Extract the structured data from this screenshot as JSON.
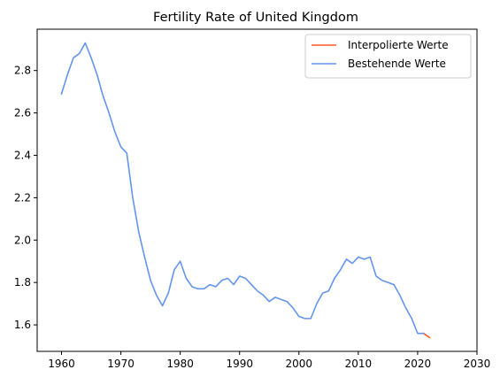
{
  "chart_data": {
    "type": "line",
    "title": "Fertility Rate of United Kingdom",
    "xlabel": "",
    "ylabel": "",
    "xlim": [
      1955.9,
      2030
    ],
    "ylim": [
      1.475,
      2.995
    ],
    "xticks": [
      1960,
      1970,
      1980,
      1990,
      2000,
      2010,
      2020,
      2030
    ],
    "yticks": [
      1.6,
      1.8,
      2.0,
      2.2,
      2.4,
      2.6,
      2.8
    ],
    "ytick_labels": [
      "1.6",
      "1.8",
      "2.0",
      "2.2",
      "2.4",
      "2.6",
      "2.8"
    ],
    "grid": false,
    "legend_position": "top-right",
    "series": [
      {
        "name": "Interpolierte Werte",
        "color": "#ff5722",
        "x": [
          2021,
          2022
        ],
        "y": [
          1.56,
          1.54
        ]
      },
      {
        "name": "Bestehende Werte",
        "color": "#6495ed",
        "x": [
          1960,
          1961,
          1962,
          1963,
          1964,
          1965,
          1966,
          1967,
          1968,
          1969,
          1970,
          1971,
          1972,
          1973,
          1974,
          1975,
          1976,
          1977,
          1978,
          1979,
          1980,
          1981,
          1982,
          1983,
          1984,
          1985,
          1986,
          1987,
          1988,
          1989,
          1990,
          1991,
          1992,
          1993,
          1994,
          1995,
          1996,
          1997,
          1998,
          1999,
          2000,
          2001,
          2002,
          2003,
          2004,
          2005,
          2006,
          2007,
          2008,
          2009,
          2010,
          2011,
          2012,
          2013,
          2014,
          2015,
          2016,
          2017,
          2018,
          2019,
          2020,
          2021
        ],
        "y": [
          2.69,
          2.78,
          2.86,
          2.88,
          2.93,
          2.86,
          2.78,
          2.68,
          2.6,
          2.51,
          2.44,
          2.41,
          2.2,
          2.04,
          1.92,
          1.81,
          1.74,
          1.69,
          1.75,
          1.86,
          1.9,
          1.82,
          1.78,
          1.77,
          1.77,
          1.79,
          1.78,
          1.81,
          1.82,
          1.79,
          1.83,
          1.82,
          1.79,
          1.76,
          1.74,
          1.71,
          1.73,
          1.72,
          1.71,
          1.68,
          1.64,
          1.63,
          1.63,
          1.7,
          1.75,
          1.76,
          1.82,
          1.86,
          1.91,
          1.89,
          1.92,
          1.91,
          1.92,
          1.83,
          1.81,
          1.8,
          1.79,
          1.74,
          1.68,
          1.63,
          1.56,
          1.56
        ]
      }
    ]
  }
}
